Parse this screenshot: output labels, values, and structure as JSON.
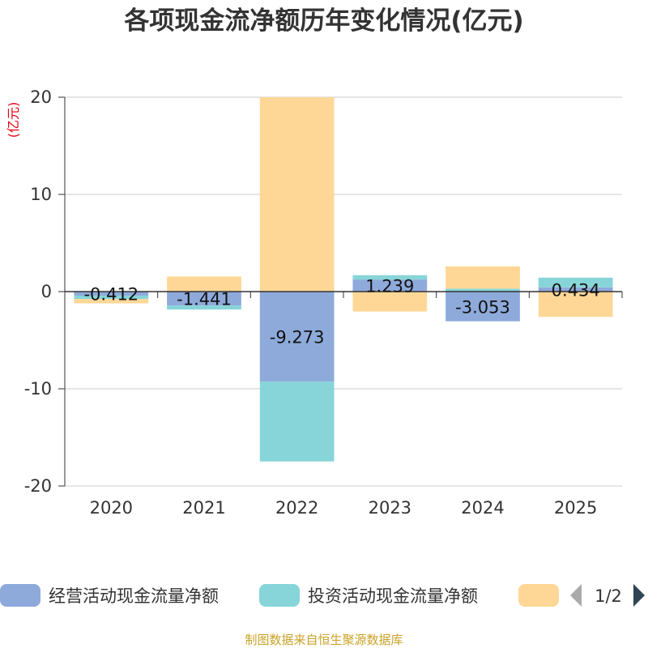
{
  "chart_data": {
    "type": "bar",
    "stacked": true,
    "title": "各项现金流净额历年变化情况(亿元)",
    "xlabel": "",
    "ylabel": "(亿元)",
    "ylim": [
      -20,
      20
    ],
    "yticks": [
      20,
      10,
      0,
      -10,
      -20
    ],
    "yticks_labels": [
      "20",
      "10",
      "0",
      "-10",
      "-20"
    ],
    "grid": true,
    "categories": [
      "2020",
      "2021",
      "2022",
      "2023",
      "2024",
      "2025"
    ],
    "series": [
      {
        "name": "经营活动现金流量净额",
        "color": "#8eaadb",
        "values": [
          -0.412,
          -1.441,
          -9.273,
          1.239,
          -3.053,
          0.434
        ],
        "labels": [
          "-0.412",
          "-1.441",
          "-9.273",
          "1.239",
          "-3.053",
          "0.434"
        ]
      },
      {
        "name": "投资活动现金流量净额",
        "color": "#87d5d8",
        "values": [
          -0.35,
          -0.4,
          -8.2,
          0.45,
          0.3,
          1.0
        ],
        "labels": [
          "",
          "",
          "",
          "",
          "",
          ""
        ]
      },
      {
        "name": "",
        "color": "#fed797",
        "values": [
          -0.45,
          1.55,
          20.0,
          -2.05,
          2.3,
          -2.6
        ],
        "labels": [
          "",
          "",
          "",
          "",
          "",
          ""
        ]
      }
    ],
    "legend": {
      "position": "bottom",
      "page_label": "1/2"
    },
    "source": "制图数据来自恒生聚源数据库"
  }
}
